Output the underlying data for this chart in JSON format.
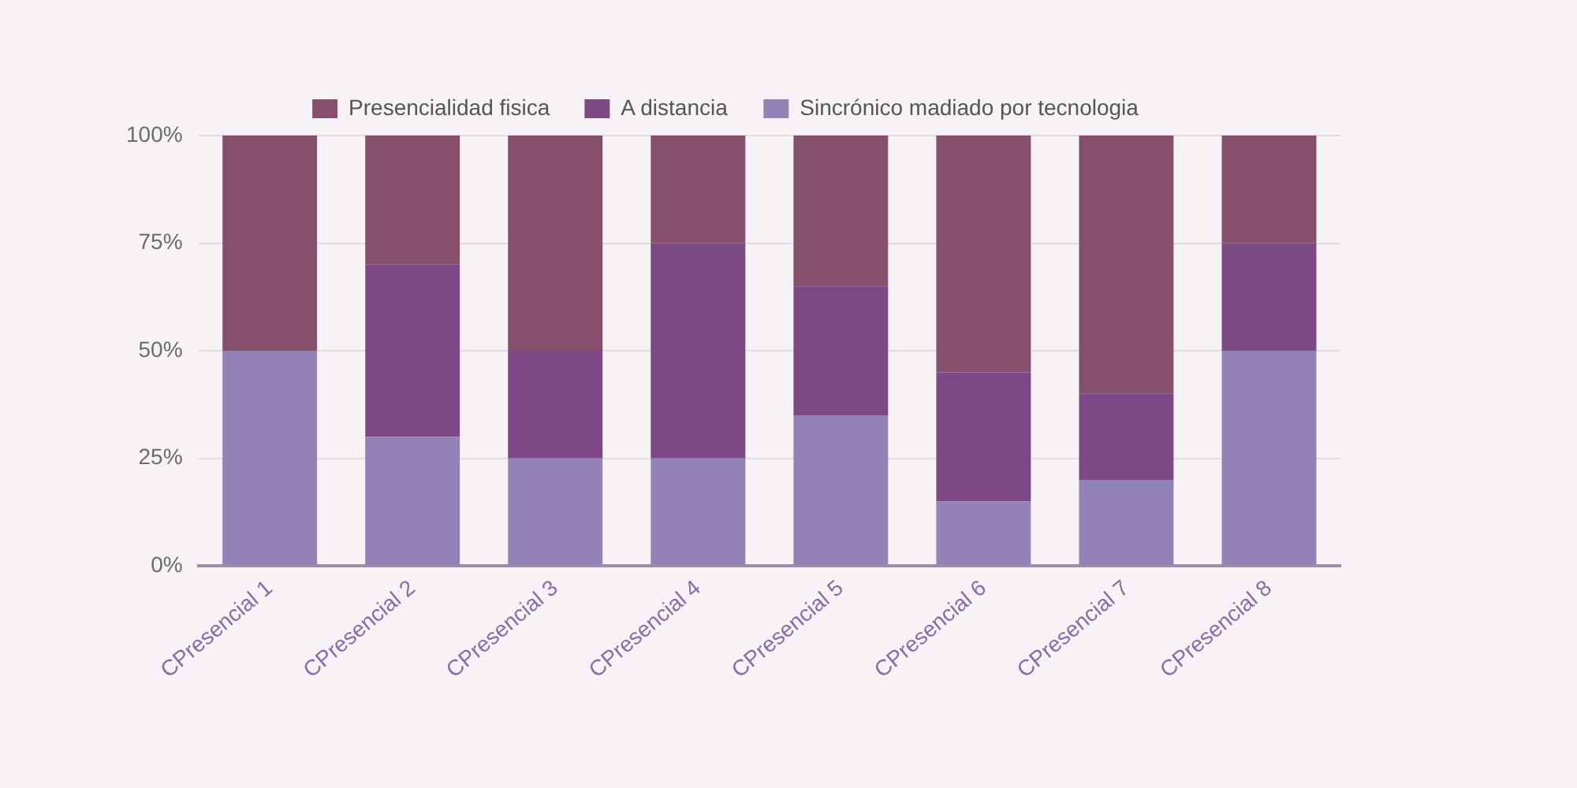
{
  "chart_data": {
    "type": "bar",
    "stacked": true,
    "categories": [
      "CPresencial 1",
      "CPresencial 2",
      "CPresencial 3",
      "CPresencial 4",
      "CPresencial 5",
      "CPresencial 6",
      "CPresencial 7",
      "CPresencial 8"
    ],
    "series": [
      {
        "name": "Sincrónico madiado por tecnologia",
        "color": "#9282b5",
        "values": [
          50,
          30,
          25,
          25,
          35,
          15,
          20,
          50
        ]
      },
      {
        "name": "A distancia",
        "color": "#7d4886",
        "values": [
          0,
          40,
          25,
          50,
          30,
          30,
          20,
          25
        ]
      },
      {
        "name": "Presencialidad fisica",
        "color": "#864f6c",
        "values": [
          50,
          30,
          50,
          25,
          35,
          55,
          60,
          25
        ]
      }
    ],
    "ylim": [
      0,
      100
    ],
    "yticks": [
      {
        "value": 0,
        "label": "0%"
      },
      {
        "value": 25,
        "label": "25%"
      },
      {
        "value": 50,
        "label": "50%"
      },
      {
        "value": 75,
        "label": "75%"
      },
      {
        "value": 100,
        "label": "100%"
      }
    ],
    "grid": "y",
    "legend": "top"
  }
}
